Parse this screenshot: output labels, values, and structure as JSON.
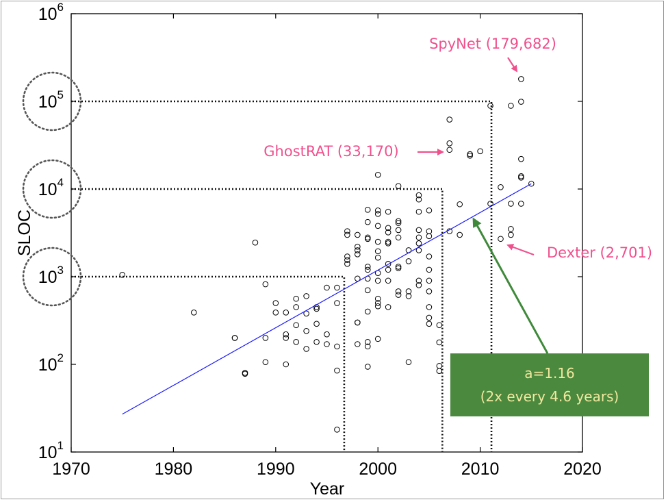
{
  "chart_data": {
    "type": "scatter",
    "title": "",
    "xlabel": "Year",
    "ylabel": "SLOC",
    "xlim": [
      1970,
      2020
    ],
    "ylim": [
      10,
      1000000
    ],
    "yscale": "log",
    "xticks": [
      "1970",
      "1980",
      "1990",
      "2000",
      "2010",
      "2020"
    ],
    "yticks": [
      {
        "base": "10",
        "exp": "1",
        "value": 10
      },
      {
        "base": "10",
        "exp": "2",
        "value": 100
      },
      {
        "base": "10",
        "exp": "3",
        "value": 1000
      },
      {
        "base": "10",
        "exp": "4",
        "value": 10000
      },
      {
        "base": "10",
        "exp": "5",
        "value": 100000
      },
      {
        "base": "10",
        "exp": "6",
        "value": 1000000
      }
    ],
    "points": [
      [
        1975,
        1050
      ],
      [
        1982,
        390
      ],
      [
        1986,
        200
      ],
      [
        1986,
        200
      ],
      [
        1987,
        80
      ],
      [
        1987,
        78
      ],
      [
        1988,
        2450
      ],
      [
        1989,
        820
      ],
      [
        1989,
        200
      ],
      [
        1989,
        106
      ],
      [
        1990,
        500
      ],
      [
        1990,
        390
      ],
      [
        1991,
        390
      ],
      [
        1991,
        220
      ],
      [
        1991,
        200
      ],
      [
        1991,
        100
      ],
      [
        1992,
        560
      ],
      [
        1992,
        450
      ],
      [
        1992,
        280
      ],
      [
        1992,
        180
      ],
      [
        1993,
        600
      ],
      [
        1993,
        380
      ],
      [
        1993,
        240
      ],
      [
        1993,
        150
      ],
      [
        1994,
        450
      ],
      [
        1994,
        430
      ],
      [
        1994,
        290
      ],
      [
        1994,
        180
      ],
      [
        1995,
        750
      ],
      [
        1995,
        220
      ],
      [
        1995,
        170
      ],
      [
        1996,
        750
      ],
      [
        1996,
        500
      ],
      [
        1996,
        160
      ],
      [
        1996,
        85
      ],
      [
        1996,
        18
      ],
      [
        1997,
        3300
      ],
      [
        1997,
        3000
      ],
      [
        1997,
        1700
      ],
      [
        1997,
        1550
      ],
      [
        1997,
        1400
      ],
      [
        1998,
        3000
      ],
      [
        1998,
        2200
      ],
      [
        1998,
        2000
      ],
      [
        1998,
        1800
      ],
      [
        1998,
        950
      ],
      [
        1998,
        300
      ],
      [
        1998,
        300
      ],
      [
        1998,
        170
      ],
      [
        1999,
        5800
      ],
      [
        1999,
        4200
      ],
      [
        1999,
        2800
      ],
      [
        1999,
        2700
      ],
      [
        1999,
        1300
      ],
      [
        1999,
        1200
      ],
      [
        1999,
        950
      ],
      [
        1999,
        700
      ],
      [
        1999,
        400
      ],
      [
        1999,
        180
      ],
      [
        1999,
        160
      ],
      [
        1999,
        94
      ],
      [
        2000,
        14500
      ],
      [
        2000,
        5700
      ],
      [
        2000,
        5200
      ],
      [
        2000,
        3800
      ],
      [
        2000,
        2500
      ],
      [
        2000,
        1950
      ],
      [
        2000,
        1650
      ],
      [
        2000,
        1100
      ],
      [
        2000,
        900
      ],
      [
        2000,
        560
      ],
      [
        2000,
        500
      ],
      [
        2000,
        460
      ],
      [
        2000,
        195
      ],
      [
        2001,
        5500
      ],
      [
        2001,
        3600
      ],
      [
        2001,
        3200
      ],
      [
        2001,
        2500
      ],
      [
        2001,
        2400
      ],
      [
        2001,
        1400
      ],
      [
        2001,
        1200
      ],
      [
        2001,
        900
      ],
      [
        2001,
        450
      ],
      [
        2002,
        10800
      ],
      [
        2002,
        4300
      ],
      [
        2002,
        4100
      ],
      [
        2002,
        3400
      ],
      [
        2002,
        2800
      ],
      [
        2002,
        1300
      ],
      [
        2002,
        1250
      ],
      [
        2002,
        680
      ],
      [
        2002,
        620
      ],
      [
        2003,
        2000
      ],
      [
        2003,
        1500
      ],
      [
        2003,
        680
      ],
      [
        2003,
        600
      ],
      [
        2003,
        106
      ],
      [
        2004,
        8500
      ],
      [
        2004,
        7600
      ],
      [
        2004,
        5500
      ],
      [
        2004,
        3400
      ],
      [
        2004,
        2800
      ],
      [
        2004,
        2400
      ],
      [
        2004,
        2000
      ],
      [
        2004,
        900
      ],
      [
        2004,
        800
      ],
      [
        2005,
        5700
      ],
      [
        2005,
        3300
      ],
      [
        2005,
        2900
      ],
      [
        2005,
        1700
      ],
      [
        2005,
        1200
      ],
      [
        2005,
        900
      ],
      [
        2005,
        680
      ],
      [
        2005,
        450
      ],
      [
        2005,
        340
      ],
      [
        2005,
        290
      ],
      [
        2006,
        280
      ],
      [
        2006,
        178
      ],
      [
        2006,
        96
      ],
      [
        2006,
        84
      ],
      [
        2007,
        62000
      ],
      [
        2007,
        33170
      ],
      [
        2007,
        28000
      ],
      [
        2007,
        3300
      ],
      [
        2008,
        6700
      ],
      [
        2008,
        3000
      ],
      [
        2009,
        25000
      ],
      [
        2009,
        24000
      ],
      [
        2010,
        27000
      ],
      [
        2011,
        89000
      ],
      [
        2011,
        6800
      ],
      [
        2012,
        10500
      ],
      [
        2012,
        2701
      ],
      [
        2013,
        89000
      ],
      [
        2013,
        6800
      ],
      [
        2013,
        3500
      ],
      [
        2013,
        3000
      ],
      [
        2014,
        179682
      ],
      [
        2014,
        99000
      ],
      [
        2014,
        22000
      ],
      [
        2014,
        14000
      ],
      [
        2014,
        13500
      ],
      [
        2014,
        6800
      ],
      [
        2015,
        11500
      ]
    ],
    "trend_line": {
      "x": [
        1975,
        2015
      ],
      "y": [
        27,
        11500
      ],
      "color": "#1a1aff"
    },
    "threshold_lines": [
      {
        "value": 1000,
        "year": 1996.7
      },
      {
        "value": 10000,
        "year": 2006.3
      },
      {
        "value": 100000,
        "year": 2011.1
      }
    ],
    "circled_ticks": [
      1000,
      10000,
      100000
    ],
    "annotations": [
      {
        "id": "spynet",
        "text": "SpyNet (179,682)",
        "x": 2014,
        "y": 179682,
        "color": "#f0508c"
      },
      {
        "id": "ghostrat",
        "text": "GhostRAT (33,170)",
        "x": 2007,
        "y": 33170,
        "color": "#f0508c"
      },
      {
        "id": "dexter",
        "text": "Dexter (2,701)",
        "x": 2012,
        "y": 2701,
        "color": "#f0508c"
      }
    ],
    "callout": {
      "line1": "a=1.16",
      "line2": "(2x every 4.6 years)",
      "bg_color": "#4b8a3e",
      "text_color": "#f3e8a0",
      "arrow_color": "#3f8a3a"
    }
  }
}
